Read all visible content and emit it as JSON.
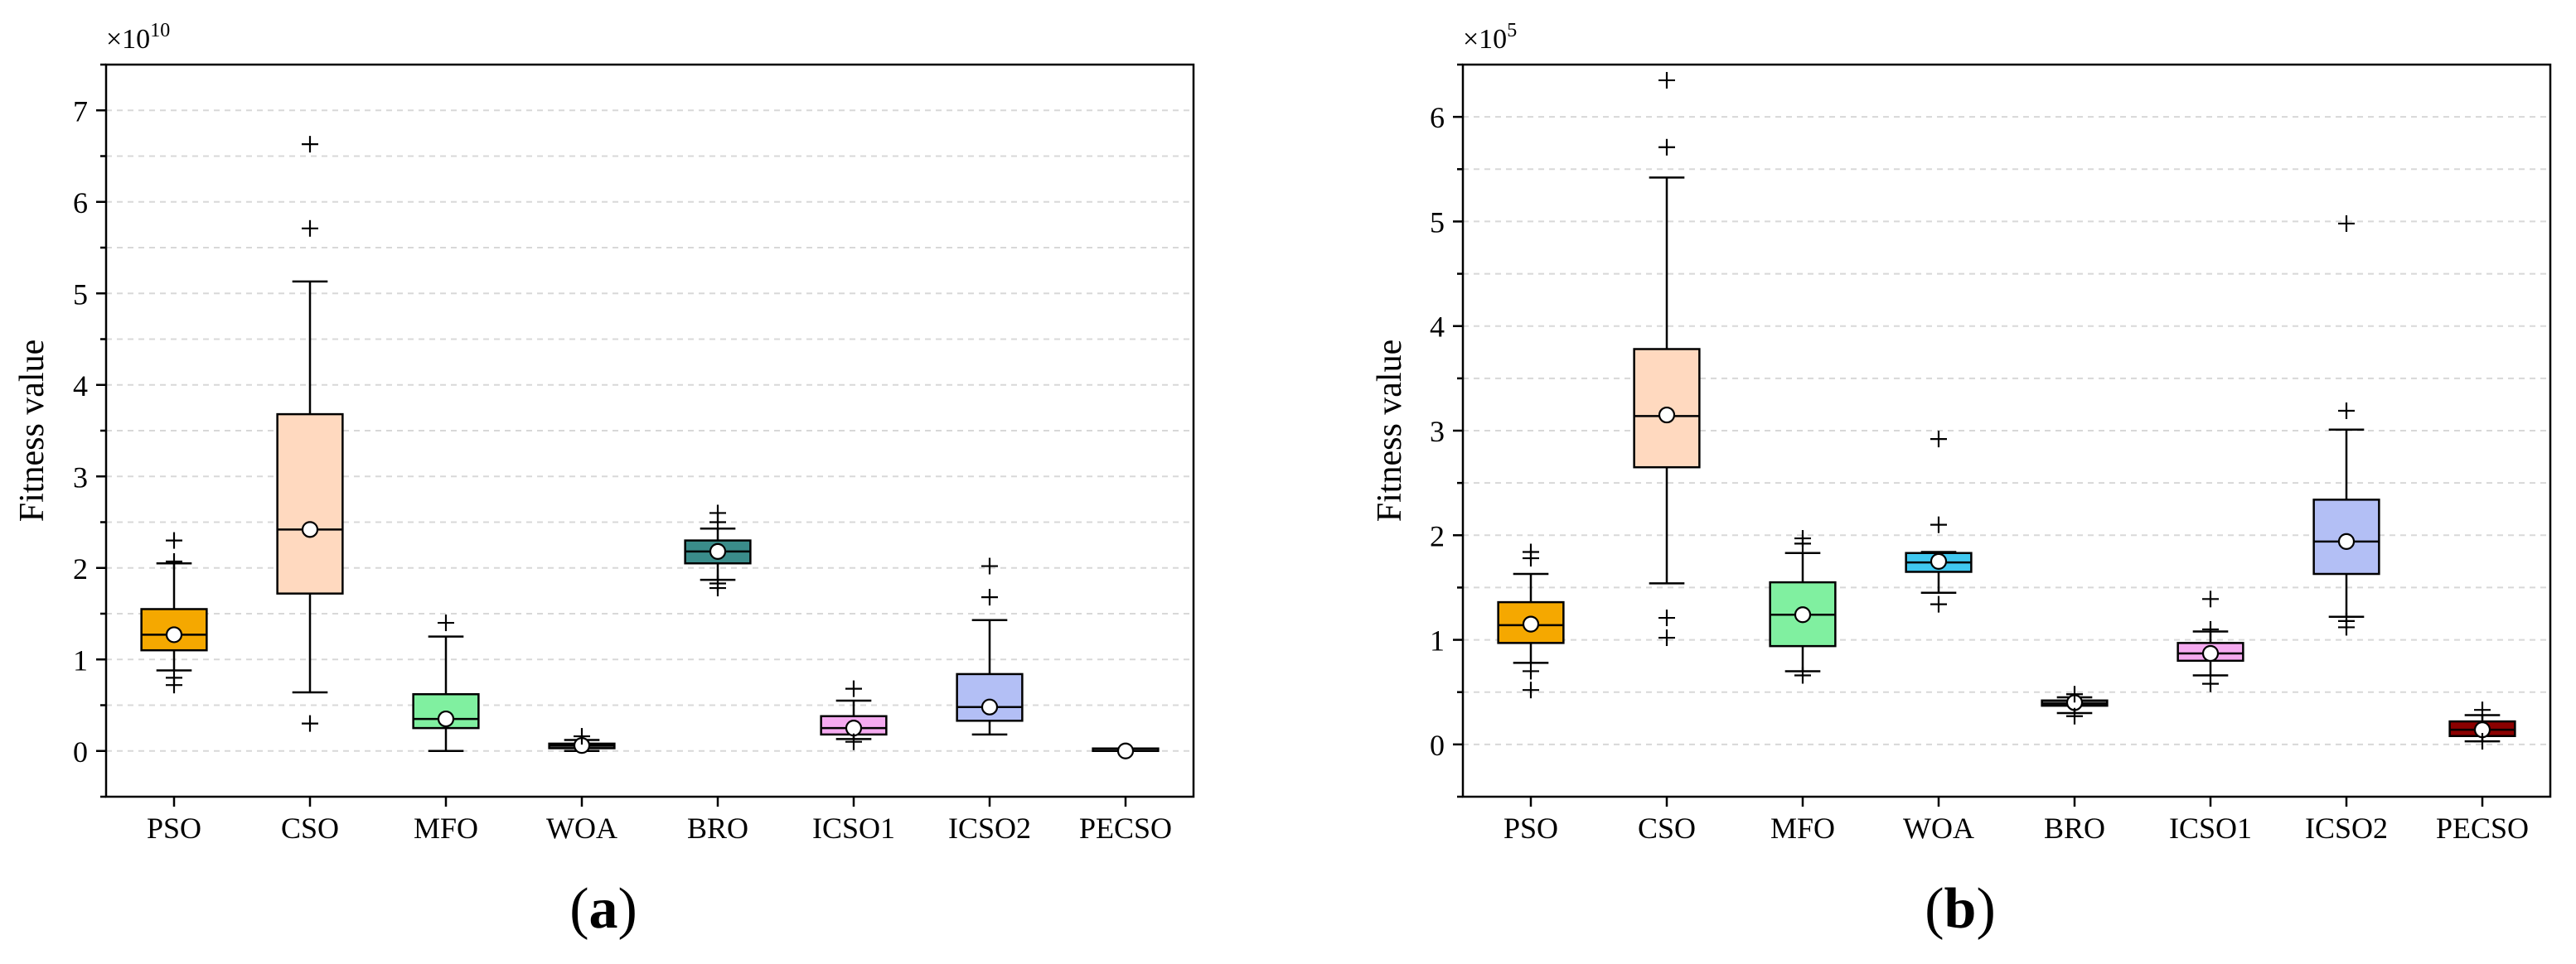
{
  "chart_data": [
    {
      "type": "box",
      "panel_label": "(a)",
      "panel_label_open": "(",
      "panel_label_letter": "a",
      "panel_label_close": ")",
      "ylabel": "Fitness value",
      "multiplier_base": "×10",
      "multiplier_exp": "10",
      "ylim": [
        -0.5,
        7.5
      ],
      "yticks": [
        0,
        1,
        2,
        3,
        4,
        5,
        6,
        7
      ],
      "ytick_labels": [
        "0",
        "1",
        "2",
        "3",
        "4",
        "5",
        "6",
        "7"
      ],
      "grid_lines": [
        0,
        0.5,
        1,
        1.5,
        2,
        2.5,
        3,
        3.5,
        4,
        4.5,
        5,
        5.5,
        6,
        6.5,
        7
      ],
      "categories": [
        "PSO",
        "CSO",
        "MFO",
        "WOA",
        "BRO",
        "ICSO1",
        "ICSO2",
        "PECSO"
      ],
      "colors": [
        "#f5a800",
        "#ffd9bf",
        "#80f0a0",
        "#606060",
        "#3a8c8a",
        "#f5aaf0",
        "#b3bff5",
        "#5a5a5a"
      ],
      "boxes": [
        {
          "q1": 1.1,
          "median": 1.27,
          "q3": 1.55,
          "whisker_low": 0.88,
          "whisker_high": 2.05,
          "mean": 1.27,
          "outliers": [
            0.72,
            0.8,
            2.07,
            2.3
          ]
        },
        {
          "q1": 1.72,
          "median": 2.42,
          "q3": 3.68,
          "whisker_low": 0.64,
          "whisker_high": 5.13,
          "mean": 2.42,
          "outliers": [
            0.3,
            5.71,
            6.63
          ]
        },
        {
          "q1": 0.25,
          "median": 0.35,
          "q3": 0.62,
          "whisker_low": 0.0,
          "whisker_high": 1.25,
          "mean": 0.35,
          "outliers": [
            1.4
          ]
        },
        {
          "q1": 0.03,
          "median": 0.06,
          "q3": 0.08,
          "whisker_low": 0.0,
          "whisker_high": 0.12,
          "mean": 0.06,
          "outliers": [
            0.16
          ]
        },
        {
          "q1": 2.05,
          "median": 2.18,
          "q3": 2.3,
          "whisker_low": 1.87,
          "whisker_high": 2.43,
          "mean": 2.18,
          "outliers": [
            1.78,
            1.83,
            2.5,
            2.6
          ]
        },
        {
          "q1": 0.18,
          "median": 0.25,
          "q3": 0.38,
          "whisker_low": 0.13,
          "whisker_high": 0.55,
          "mean": 0.25,
          "outliers": [
            0.1,
            0.68
          ]
        },
        {
          "q1": 0.33,
          "median": 0.48,
          "q3": 0.84,
          "whisker_low": 0.18,
          "whisker_high": 1.43,
          "mean": 0.48,
          "outliers": [
            1.68,
            2.02
          ]
        },
        {
          "q1": 0.0,
          "median": 0.0,
          "q3": 0.01,
          "whisker_low": 0.0,
          "whisker_high": 0.01,
          "mean": 0.0,
          "outliers": []
        }
      ]
    },
    {
      "type": "box",
      "panel_label": "(b)",
      "panel_label_open": "(",
      "panel_label_letter": "b",
      "panel_label_close": ")",
      "ylabel": "Fitness value",
      "multiplier_base": "×10",
      "multiplier_exp": "5",
      "ylim": [
        -0.5,
        6.5
      ],
      "yticks": [
        0,
        1,
        2,
        3,
        4,
        5,
        6
      ],
      "ytick_labels": [
        "0",
        "1",
        "2",
        "3",
        "4",
        "5",
        "6"
      ],
      "grid_lines": [
        0,
        0.5,
        1,
        1.5,
        2,
        2.5,
        3,
        3.5,
        4,
        4.5,
        5,
        5.5,
        6
      ],
      "categories": [
        "PSO",
        "CSO",
        "MFO",
        "WOA",
        "BRO",
        "ICSO1",
        "ICSO2",
        "PECSO"
      ],
      "colors": [
        "#f5a800",
        "#ffd9bf",
        "#80f0a0",
        "#40c8f0",
        "#606060",
        "#f5aaf0",
        "#b3bff5",
        "#8b0000"
      ],
      "boxes": [
        {
          "q1": 0.97,
          "median": 1.14,
          "q3": 1.36,
          "whisker_low": 0.78,
          "whisker_high": 1.63,
          "mean": 1.15,
          "outliers": [
            0.52,
            0.7,
            1.78,
            1.84
          ]
        },
        {
          "q1": 2.65,
          "median": 3.14,
          "q3": 3.78,
          "whisker_low": 1.54,
          "whisker_high": 5.42,
          "mean": 3.15,
          "outliers": [
            1.02,
            1.21,
            5.71,
            6.35
          ]
        },
        {
          "q1": 0.94,
          "median": 1.24,
          "q3": 1.55,
          "whisker_low": 0.7,
          "whisker_high": 1.83,
          "mean": 1.24,
          "outliers": [
            0.66,
            1.92,
            1.97
          ]
        },
        {
          "q1": 1.65,
          "median": 1.74,
          "q3": 1.83,
          "whisker_low": 1.45,
          "whisker_high": 1.84,
          "mean": 1.75,
          "outliers": [
            1.34,
            2.1,
            2.92
          ]
        },
        {
          "q1": 0.37,
          "median": 0.39,
          "q3": 0.42,
          "whisker_low": 0.3,
          "whisker_high": 0.45,
          "mean": 0.4,
          "outliers": [
            0.27,
            0.48
          ]
        },
        {
          "q1": 0.8,
          "median": 0.87,
          "q3": 0.97,
          "whisker_low": 0.66,
          "whisker_high": 1.08,
          "mean": 0.87,
          "outliers": [
            0.58,
            1.1,
            1.39
          ]
        },
        {
          "q1": 1.63,
          "median": 1.94,
          "q3": 2.34,
          "whisker_low": 1.22,
          "whisker_high": 3.01,
          "mean": 1.94,
          "outliers": [
            1.12,
            1.18,
            3.19,
            4.98
          ]
        },
        {
          "q1": 0.08,
          "median": 0.14,
          "q3": 0.22,
          "whisker_low": 0.03,
          "whisker_high": 0.28,
          "mean": 0.14,
          "outliers": [
            0.03,
            0.33
          ]
        }
      ]
    }
  ]
}
